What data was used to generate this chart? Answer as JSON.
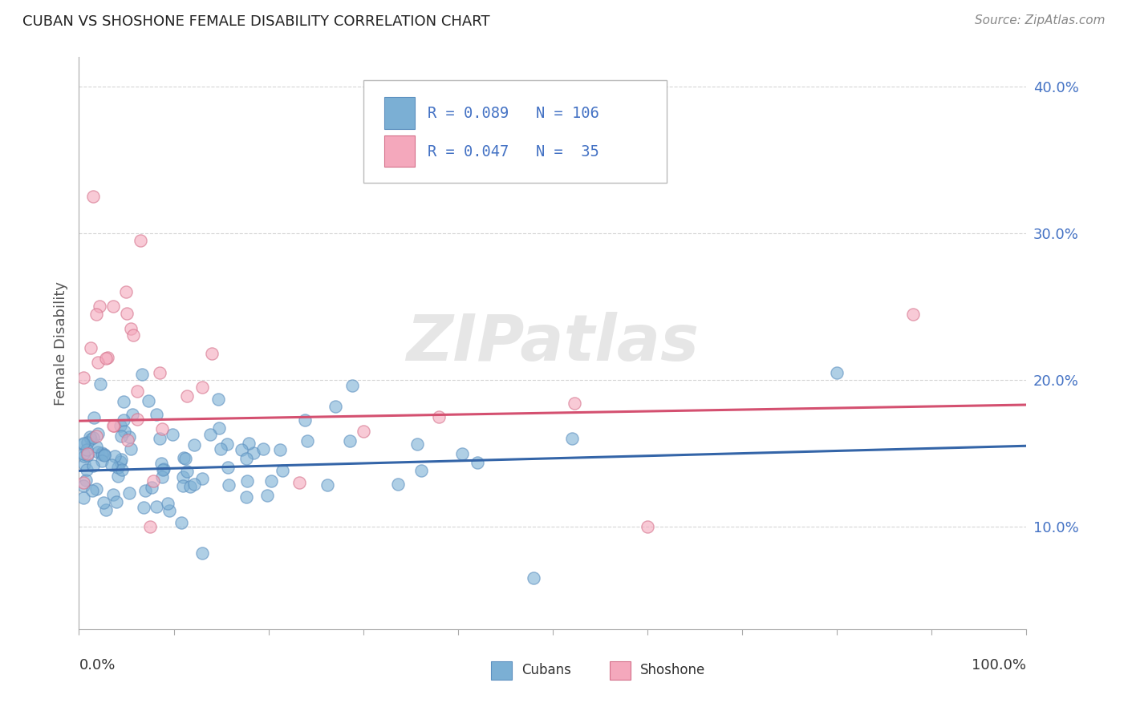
{
  "title": "CUBAN VS SHOSHONE FEMALE DISABILITY CORRELATION CHART",
  "source": "Source: ZipAtlas.com",
  "ylabel": "Female Disability",
  "watermark": "ZIPatlas",
  "xlim": [
    0,
    1
  ],
  "ylim": [
    0.03,
    0.42
  ],
  "ytick_vals": [
    0.1,
    0.2,
    0.3,
    0.4
  ],
  "ytick_labels": [
    "10.0%",
    "20.0%",
    "30.0%",
    "40.0%"
  ],
  "cuban_color": "#7bafd4",
  "cuban_edge_color": "#5b8fbf",
  "shoshone_color": "#f4a8bc",
  "shoshone_edge_color": "#d4708a",
  "cuban_line_color": "#3465a8",
  "shoshone_line_color": "#d45070",
  "legend_text_color": "#4472c4",
  "legend_n_color": "#111111",
  "grid_color": "#cccccc",
  "background_color": "#ffffff",
  "cuban_R": 0.089,
  "cuban_N": 106,
  "shoshone_R": 0.047,
  "shoshone_N": 35,
  "cuban_line_x0": 0.0,
  "cuban_line_y0": 0.138,
  "cuban_line_x1": 1.0,
  "cuban_line_y1": 0.155,
  "shoshone_line_x0": 0.0,
  "shoshone_line_y0": 0.172,
  "shoshone_line_x1": 1.0,
  "shoshone_line_y1": 0.183
}
